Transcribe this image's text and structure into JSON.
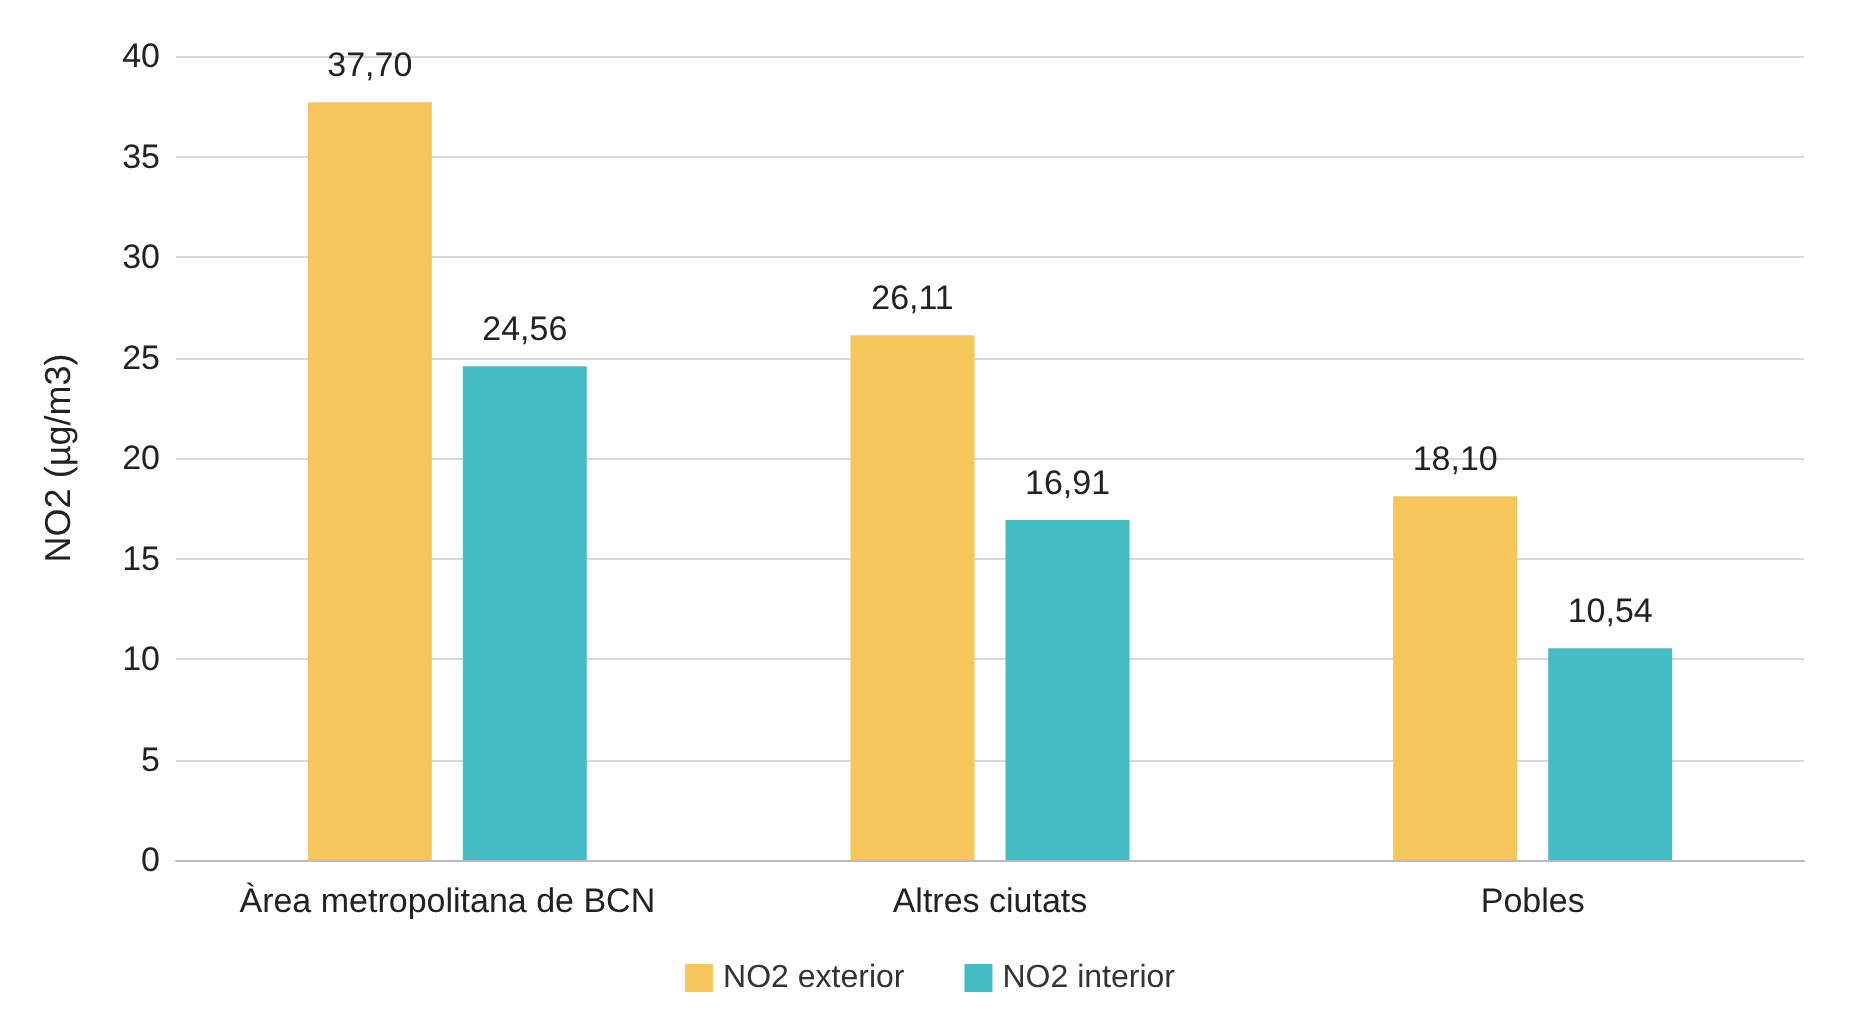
{
  "chart_data": {
    "type": "bar",
    "ylabel": "NO2 (µg/m3)",
    "categories": [
      "Àrea metropolitana de BCN",
      "Altres ciutats",
      "Pobles"
    ],
    "series": [
      {
        "name": "NO2 exterior",
        "color": "#f5c75b",
        "values": [
          37.7,
          26.11,
          18.1
        ],
        "value_labels": [
          "37,70",
          "26,11",
          "18,10"
        ]
      },
      {
        "name": "NO2 interior",
        "color": "#45bdc4",
        "values": [
          24.56,
          16.91,
          10.54
        ],
        "value_labels": [
          "24,56",
          "16,91",
          "10,54"
        ]
      }
    ],
    "ylim": [
      0,
      40
    ],
    "yticks": [
      0,
      5,
      10,
      15,
      20,
      25,
      30,
      35,
      40
    ],
    "grid": "y",
    "legend": "bottom"
  }
}
